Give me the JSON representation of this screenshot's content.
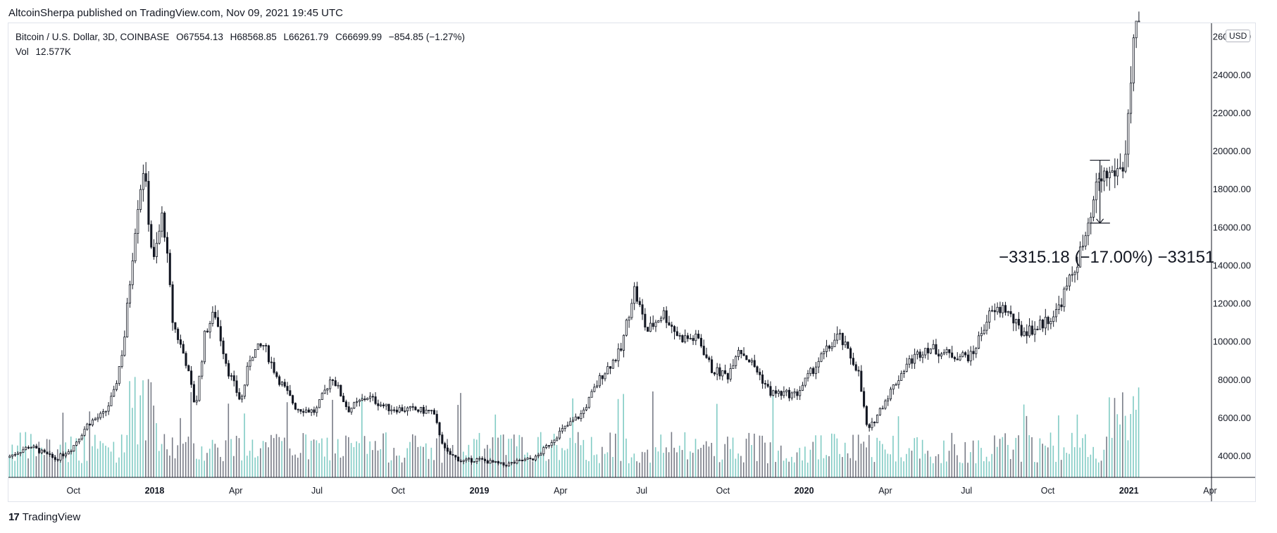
{
  "header": {
    "publish_text": "AltcoinSherpa published on TradingView.com, Nov 09, 2021 19:45 UTC"
  },
  "legend": {
    "symbol_text": "Bitcoin / U.S. Dollar, 3D, COINBASE",
    "open": "O67554.13",
    "high": "H68568.85",
    "low": "L66261.79",
    "close": "C66699.99",
    "change": "−854.85 (−1.27%)",
    "vol_label": "Vol",
    "vol_value": "12.577K"
  },
  "currency_badge": "USD",
  "measure_label": "−3315.18 (−17.00%) −33151",
  "footer": {
    "brand": "TradingView",
    "logo_glyph": "17"
  },
  "colors": {
    "candle_up_fill": "#ffffff",
    "candle_down_fill": "#131722",
    "candle_outline": "#131722",
    "volume_up": "#80cbc4",
    "volume_down": "#787b86",
    "axis_text": "#131722",
    "border": "#e0e3eb"
  },
  "chart_data": {
    "type": "candlestick",
    "title": "Bitcoin / U.S. Dollar, 3D, COINBASE",
    "ylabel": "USD",
    "ylim": [
      3300,
      26800
    ],
    "y_ticks": [
      "24000.00",
      "22000.00",
      "20000.00",
      "18000.00",
      "16000.00",
      "14000.00",
      "12000.00",
      "10000.00",
      "8000.00",
      "6000.00",
      "4000.00"
    ],
    "y_tick_values": [
      24000,
      22000,
      20000,
      18000,
      16000,
      14000,
      12000,
      10000,
      8000,
      6000,
      4000
    ],
    "y_top_partial_tick": "26000.00",
    "y_top_partial_value": 26000,
    "x_ticks": [
      {
        "label": "Oct",
        "month": 2017.75,
        "bold": false
      },
      {
        "label": "2018",
        "month": 2018.0,
        "bold": true
      },
      {
        "label": "Apr",
        "month": 2018.25,
        "bold": false
      },
      {
        "label": "Jul",
        "month": 2018.5,
        "bold": false
      },
      {
        "label": "Oct",
        "month": 2018.75,
        "bold": false
      },
      {
        "label": "2019",
        "month": 2019.0,
        "bold": true
      },
      {
        "label": "Apr",
        "month": 2019.25,
        "bold": false
      },
      {
        "label": "Jul",
        "month": 2019.5,
        "bold": false
      },
      {
        "label": "Oct",
        "month": 2019.75,
        "bold": false
      },
      {
        "label": "2020",
        "month": 2020.0,
        "bold": true
      },
      {
        "label": "Apr",
        "month": 2020.25,
        "bold": false
      },
      {
        "label": "Jul",
        "month": 2020.5,
        "bold": false
      },
      {
        "label": "Oct",
        "month": 2020.75,
        "bold": false
      },
      {
        "label": "2021",
        "month": 2021.0,
        "bold": true
      },
      {
        "label": "Apr",
        "month": 2021.25,
        "bold": false
      }
    ],
    "x_range": [
      2017.55,
      2021.25
    ],
    "price_path": [
      [
        2017.55,
        3900
      ],
      [
        2017.62,
        4500
      ],
      [
        2017.7,
        3800
      ],
      [
        2017.75,
        4400
      ],
      [
        2017.8,
        5700
      ],
      [
        2017.85,
        6200
      ],
      [
        2017.88,
        7300
      ],
      [
        2017.91,
        10000
      ],
      [
        2017.95,
        17000
      ],
      [
        2017.97,
        19200
      ],
      [
        2018.0,
        14000
      ],
      [
        2018.03,
        16800
      ],
      [
        2018.06,
        11000
      ],
      [
        2018.1,
        9000
      ],
      [
        2018.13,
        6500
      ],
      [
        2018.16,
        10500
      ],
      [
        2018.19,
        11500
      ],
      [
        2018.23,
        8500
      ],
      [
        2018.27,
        6800
      ],
      [
        2018.3,
        9300
      ],
      [
        2018.34,
        9800
      ],
      [
        2018.38,
        8200
      ],
      [
        2018.44,
        6500
      ],
      [
        2018.5,
        6300
      ],
      [
        2018.55,
        8200
      ],
      [
        2018.6,
        6400
      ],
      [
        2018.66,
        7100
      ],
      [
        2018.72,
        6500
      ],
      [
        2018.8,
        6400
      ],
      [
        2018.86,
        6300
      ],
      [
        2018.9,
        4200
      ],
      [
        2018.95,
        3700
      ],
      [
        2019.0,
        3800
      ],
      [
        2019.08,
        3500
      ],
      [
        2019.18,
        3900
      ],
      [
        2019.25,
        5200
      ],
      [
        2019.32,
        6200
      ],
      [
        2019.38,
        8200
      ],
      [
        2019.44,
        9500
      ],
      [
        2019.48,
        12800
      ],
      [
        2019.52,
        10500
      ],
      [
        2019.57,
        11500
      ],
      [
        2019.62,
        10200
      ],
      [
        2019.68,
        10100
      ],
      [
        2019.72,
        8500
      ],
      [
        2019.77,
        8200
      ],
      [
        2019.8,
        9700
      ],
      [
        2019.85,
        8700
      ],
      [
        2019.9,
        7300
      ],
      [
        2019.98,
        7200
      ],
      [
        2020.05,
        9000
      ],
      [
        2020.11,
        10300
      ],
      [
        2020.17,
        8500
      ],
      [
        2020.2,
        5200
      ],
      [
        2020.25,
        6800
      ],
      [
        2020.32,
        8800
      ],
      [
        2020.38,
        9700
      ],
      [
        2020.45,
        9300
      ],
      [
        2020.52,
        9200
      ],
      [
        2020.57,
        11300
      ],
      [
        2020.62,
        11800
      ],
      [
        2020.67,
        10500
      ],
      [
        2020.72,
        10700
      ],
      [
        2020.78,
        11500
      ],
      [
        2020.83,
        13500
      ],
      [
        2020.88,
        15800
      ],
      [
        2020.91,
        18500
      ],
      [
        2020.95,
        18800
      ],
      [
        2020.99,
        19200
      ],
      [
        2021.01,
        23500
      ],
      [
        2021.03,
        27500
      ]
    ],
    "volume_notes": "Volume bars along the bottom, teal for up candles and grey for down candles, with the largest spikes around Dec 2017 and Jan 2021.",
    "annotation": {
      "type": "price-range",
      "from": 19500,
      "to": 16200,
      "x_start": 2020.88,
      "x_end": 2020.92,
      "text": "−3315.18 (−17.00%) −33151"
    }
  }
}
